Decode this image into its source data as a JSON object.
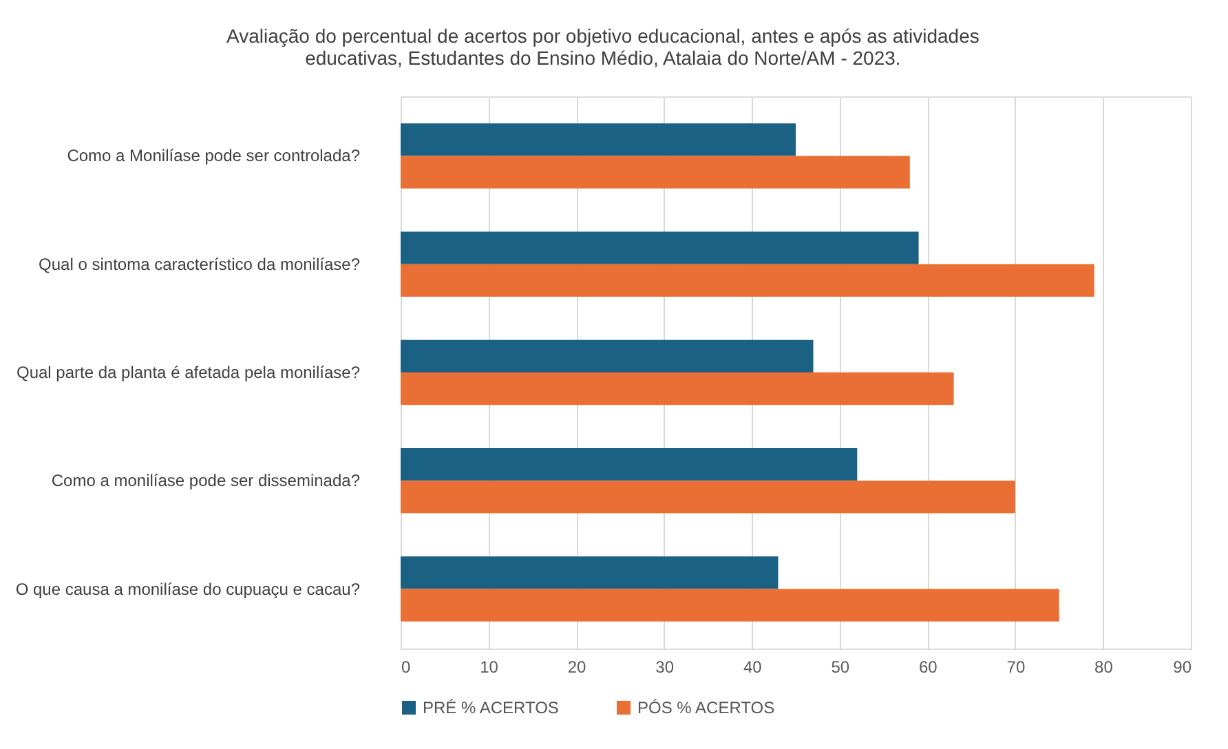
{
  "chart_data": {
    "type": "bar",
    "orientation": "horizontal",
    "title": "Avaliação do percentual de acertos por objetivo educacional, antes e após as atividades\neducativas, Estudantes do Ensino Médio, Atalaia do Norte/AM - 2023.",
    "categories": [
      "Como a Monilíase pode ser controlada?",
      "Qual o sintoma característico da monilíase?",
      "Qual parte da planta é afetada pela monilíase?",
      "Como a monilíase pode ser disseminada?",
      "O que causa a monilíase do cupuaçu e cacau?"
    ],
    "series": [
      {
        "name": "PRÉ % ACERTOS",
        "color": "#1b6183",
        "values": [
          45,
          59,
          47,
          52,
          43
        ]
      },
      {
        "name": "PÓS % ACERTOS",
        "color": "#e96f34",
        "values": [
          58,
          79,
          63,
          70,
          75
        ]
      }
    ],
    "xlim": [
      0,
      90
    ],
    "xticks": [
      0,
      10,
      20,
      30,
      40,
      50,
      60,
      70,
      80,
      90
    ],
    "grid": "x",
    "legend": "bottom"
  }
}
